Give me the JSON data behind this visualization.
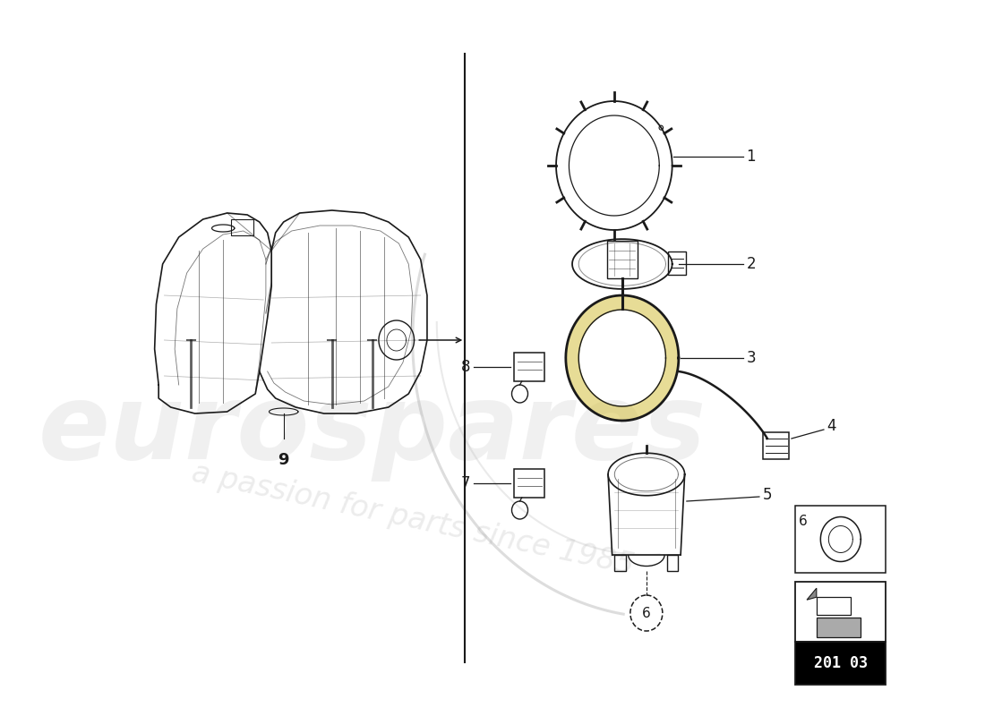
{
  "background_color": "#ffffff",
  "line_color": "#1a1a1a",
  "watermark_color1": "#cccccc",
  "watermark_color2": "#bbbbbb",
  "watermark_alpha": 0.28,
  "diagram_code": "201 03",
  "label_fontsize": 11
}
